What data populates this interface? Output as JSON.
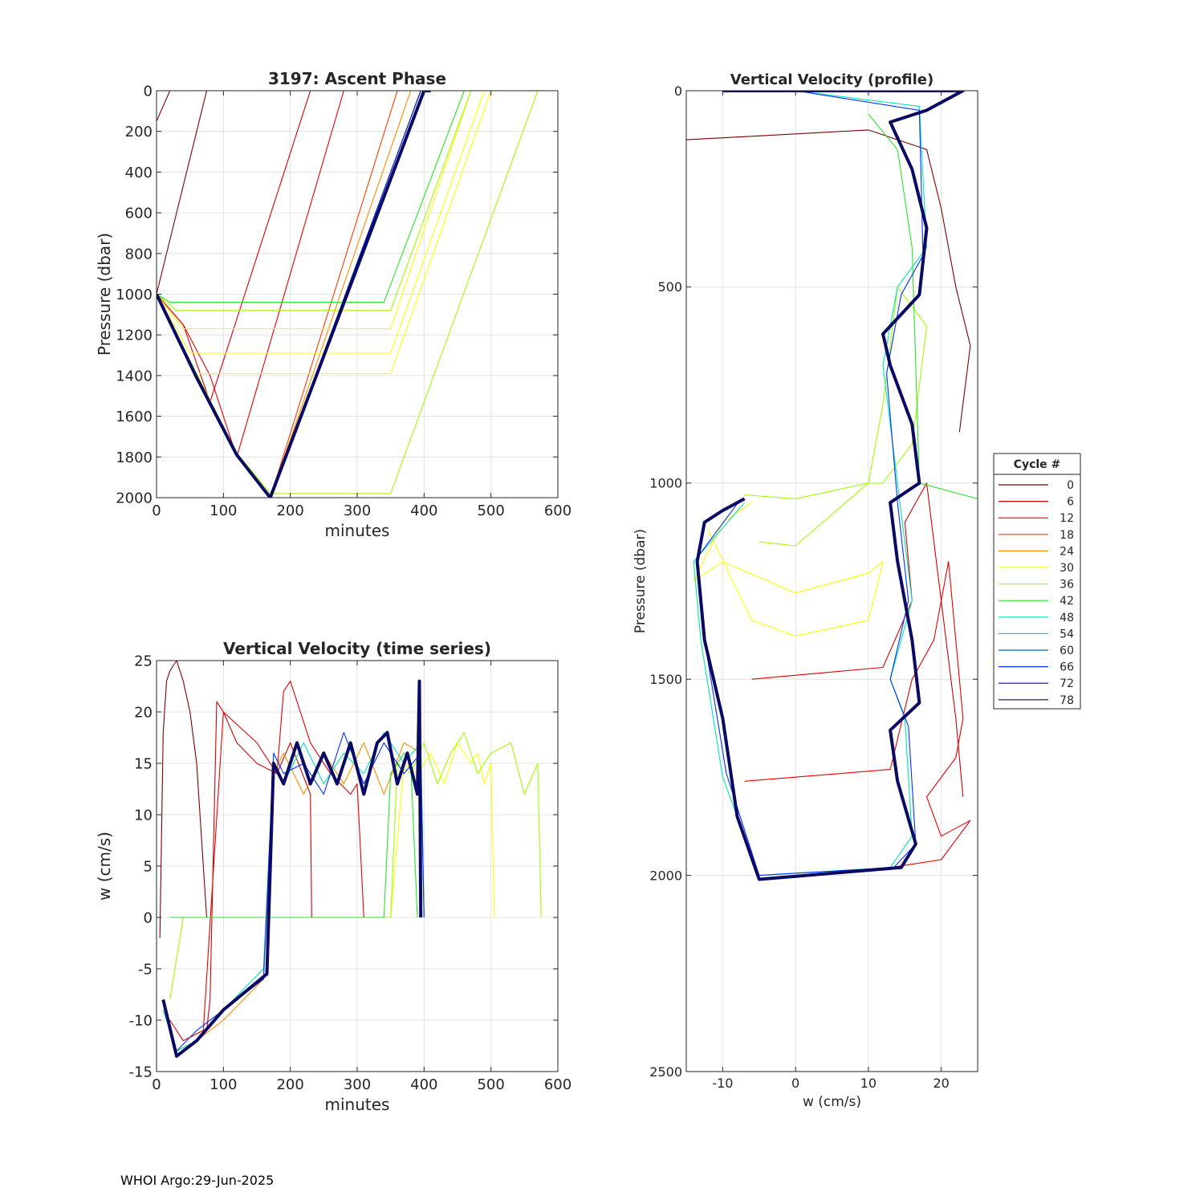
{
  "footer": "WHOI Argo:29-Jun-2025",
  "legend": {
    "title": "Cycle #",
    "cycles": [
      0,
      6,
      12,
      18,
      24,
      30,
      36,
      42,
      48,
      54,
      60,
      66,
      72,
      78
    ],
    "colors": [
      "#800000",
      "#d40000",
      "#e80000",
      "#ff3c00",
      "#ff8c00",
      "#ffff00",
      "#a0ff00",
      "#28e628",
      "#00e6b4",
      "#00c8ff",
      "#0064c8",
      "#0032ff",
      "#0000d2",
      "#0a0a64"
    ]
  },
  "chart_data": [
    {
      "id": "ascent",
      "type": "line",
      "title": "3197: Ascent Phase",
      "xlabel": "minutes",
      "ylabel": "Pressure (dbar)",
      "xlim": [
        0,
        600
      ],
      "ylim": [
        0,
        2000
      ],
      "y_reversed": true,
      "grid": true,
      "xticks": [
        0,
        100,
        200,
        300,
        400,
        500,
        600
      ],
      "yticks": [
        0,
        200,
        400,
        600,
        800,
        1000,
        1200,
        1400,
        1600,
        1800,
        2000
      ],
      "series": [
        {
          "cycle": 0,
          "x": [
            0,
            20,
            75
          ],
          "y": [
            150,
            0,
            0
          ]
        },
        {
          "cycle": 0,
          "x": [
            0,
            75
          ],
          "y": [
            1000,
            0
          ]
        },
        {
          "cycle": 6,
          "x": [
            0,
            40,
            80,
            230,
            235
          ],
          "y": [
            1000,
            1150,
            1530,
            0,
            0
          ]
        },
        {
          "cycle": 12,
          "x": [
            0,
            40,
            80,
            120,
            280,
            290
          ],
          "y": [
            1000,
            1150,
            1400,
            1800,
            0,
            0
          ]
        },
        {
          "cycle": 18,
          "x": [
            0,
            60,
            120,
            170,
            360,
            370
          ],
          "y": [
            1000,
            1400,
            1780,
            2000,
            0,
            0
          ]
        },
        {
          "cycle": 24,
          "x": [
            0,
            60,
            120,
            170,
            380,
            390
          ],
          "y": [
            1000,
            1420,
            1790,
            2000,
            0,
            0
          ]
        },
        {
          "cycle": 30,
          "x": [
            0,
            40,
            350,
            470,
            480
          ],
          "y": [
            1000,
            1170,
            1170,
            0,
            0
          ]
        },
        {
          "cycle": 30,
          "x": [
            0,
            50,
            350,
            490,
            500
          ],
          "y": [
            1000,
            1290,
            1290,
            0,
            0
          ]
        },
        {
          "cycle": 30,
          "x": [
            0,
            60,
            350,
            500,
            510
          ],
          "y": [
            1000,
            1390,
            1390,
            0,
            0
          ]
        },
        {
          "cycle": 36,
          "x": [
            0,
            120,
            170,
            350,
            570,
            575
          ],
          "y": [
            1000,
            1780,
            1980,
            1980,
            0,
            0
          ]
        },
        {
          "cycle": 36,
          "x": [
            0,
            30,
            350,
            470
          ],
          "y": [
            1000,
            1080,
            1080,
            0
          ]
        },
        {
          "cycle": 42,
          "x": [
            0,
            20,
            340,
            460
          ],
          "y": [
            1000,
            1040,
            1040,
            0
          ]
        },
        {
          "cycle": 48,
          "x": [
            0,
            60,
            120,
            170,
            395,
            405
          ],
          "y": [
            1000,
            1410,
            1790,
            2000,
            0,
            0
          ]
        },
        {
          "cycle": 60,
          "x": [
            0,
            60,
            120,
            170,
            400,
            410
          ],
          "y": [
            1000,
            1415,
            1790,
            2000,
            0,
            0
          ]
        },
        {
          "cycle": 72,
          "x": [
            0,
            60,
            120,
            170,
            395,
            405
          ],
          "y": [
            1000,
            1405,
            1785,
            2000,
            0,
            0
          ]
        },
        {
          "cycle": 78,
          "x": [
            0,
            60,
            120,
            170,
            400,
            410
          ],
          "y": [
            1000,
            1410,
            1790,
            2000,
            0,
            0
          ],
          "bold": true
        }
      ]
    },
    {
      "id": "timeseries",
      "type": "line",
      "title": "Vertical Velocity (time series)",
      "xlabel": "minutes",
      "ylabel": "w (cm/s)",
      "xlim": [
        0,
        600
      ],
      "ylim": [
        -15,
        25
      ],
      "grid": true,
      "xticks": [
        0,
        100,
        200,
        300,
        400,
        500,
        600
      ],
      "yticks": [
        -15,
        -10,
        -5,
        0,
        5,
        10,
        15,
        20,
        25
      ],
      "series": [
        {
          "cycle": 0,
          "x": [
            5,
            10,
            15,
            20,
            30,
            40,
            50,
            60,
            70,
            75,
            80
          ],
          "y": [
            -2,
            18,
            23,
            24,
            25,
            23,
            20,
            15,
            5,
            0,
            0
          ]
        },
        {
          "cycle": 6,
          "x": [
            75,
            80,
            90,
            100,
            120,
            150,
            180,
            200,
            230,
            232,
            240
          ],
          "y": [
            -11,
            -8,
            21,
            20,
            17,
            15,
            14,
            17,
            12,
            0,
            0
          ]
        },
        {
          "cycle": 12,
          "x": [
            20,
            40,
            70,
            100,
            150,
            180,
            190,
            200,
            230,
            260,
            290,
            300,
            310
          ],
          "y": [
            -10,
            -12,
            -11,
            20,
            17,
            14,
            22,
            23,
            17,
            14,
            12,
            13,
            0
          ]
        },
        {
          "cycle": 24,
          "x": [
            10,
            30,
            60,
            100,
            160,
            175,
            190,
            220,
            250,
            280,
            310,
            340,
            370,
            395,
            400
          ],
          "y": [
            -8,
            -13,
            -12,
            -10,
            -6,
            14,
            16,
            12,
            16,
            13,
            17,
            12,
            17,
            16,
            0
          ]
        },
        {
          "cycle": 30,
          "x": [
            350,
            370,
            390,
            410,
            430,
            450,
            470,
            480,
            490,
            500,
            505
          ],
          "y": [
            0,
            15,
            14,
            16,
            13,
            17,
            15,
            16,
            13,
            15,
            0
          ]
        },
        {
          "cycle": 36,
          "x": [
            20,
            40,
            350,
            360,
            380,
            400,
            420,
            440,
            460,
            480,
            500,
            530,
            550,
            570,
            575
          ],
          "y": [
            -8,
            0,
            0,
            15,
            14,
            17,
            13,
            16,
            18,
            14,
            16,
            17,
            12,
            15,
            0
          ]
        },
        {
          "cycle": 42,
          "x": [
            20,
            60,
            340,
            350,
            370,
            380,
            390
          ],
          "y": [
            0,
            0,
            0,
            14,
            16,
            15,
            0
          ]
        },
        {
          "cycle": 48,
          "x": [
            10,
            30,
            60,
            100,
            160,
            175,
            190,
            220,
            250,
            280,
            310,
            340,
            370,
            395,
            400
          ],
          "y": [
            -9,
            -13,
            -12,
            -9,
            -5,
            15,
            13,
            17,
            13,
            16,
            14,
            18,
            15,
            17,
            0
          ]
        },
        {
          "cycle": 66,
          "x": [
            10,
            30,
            60,
            100,
            160,
            175,
            190,
            220,
            250,
            280,
            310,
            340,
            370,
            395,
            400
          ],
          "y": [
            -8,
            -13,
            -11,
            -9,
            -6,
            16,
            14,
            15,
            12,
            18,
            13,
            17,
            14,
            16,
            0
          ]
        },
        {
          "cycle": 78,
          "x": [
            10,
            30,
            60,
            100,
            165,
            175,
            190,
            210,
            230,
            250,
            270,
            290,
            310,
            330,
            345,
            360,
            375,
            390,
            393,
            395
          ],
          "y": [
            -8,
            -13.5,
            -12,
            -9,
            -5.5,
            15,
            13,
            17,
            13,
            16,
            13,
            17,
            12,
            17,
            18,
            13,
            16,
            12,
            23,
            0
          ],
          "bold": true
        }
      ]
    },
    {
      "id": "profile",
      "type": "line",
      "title": "Vertical Velocity (profile)",
      "xlabel": "w (cm/s)",
      "ylabel": "Pressure (dbar)",
      "xlim": [
        -15,
        25
      ],
      "ylim": [
        0,
        2500
      ],
      "y_reversed": true,
      "grid": true,
      "xticks": [
        -10,
        0,
        10,
        20
      ],
      "yticks": [
        0,
        500,
        1000,
        1500,
        2000,
        2500
      ],
      "series": [
        {
          "cycle": 0,
          "x": [
            -15,
            10,
            18,
            20,
            22,
            24,
            22.5
          ],
          "y": [
            125,
            100,
            150,
            300,
            500,
            650,
            870
          ]
        },
        {
          "cycle": 6,
          "x": [
            -6,
            12,
            16,
            15,
            18,
            20,
            22,
            23
          ],
          "y": [
            1500,
            1470,
            1300,
            1100,
            1000,
            1300,
            1600,
            1800
          ]
        },
        {
          "cycle": 12,
          "x": [
            -7,
            13,
            16,
            19,
            21,
            23,
            22,
            18,
            20,
            24,
            20,
            13
          ],
          "y": [
            1760,
            1730,
            1500,
            1400,
            1200,
            1600,
            1700,
            1800,
            1900,
            1860,
            1960,
            1980
          ]
        },
        {
          "cycle": 30,
          "x": [
            -12,
            -6,
            0,
            10,
            12,
            10,
            0,
            -10,
            -14,
            -10,
            -6
          ],
          "y": [
            1120,
            1350,
            1390,
            1350,
            1200,
            1230,
            1280,
            1200,
            1250,
            1100,
            1050
          ]
        },
        {
          "cycle": 36,
          "x": [
            -7,
            0,
            10,
            12,
            14,
            18,
            16,
            12,
            10,
            0,
            -5
          ],
          "y": [
            1030,
            1040,
            1000,
            800,
            500,
            600,
            900,
            1000,
            1000,
            1160,
            1150
          ]
        },
        {
          "cycle": 42,
          "x": [
            10,
            14,
            16,
            17,
            25
          ],
          "y": [
            60,
            150,
            400,
            1000,
            1040
          ]
        },
        {
          "cycle": 48,
          "x": [
            -7,
            -14,
            -13,
            -10,
            -5,
            13,
            16,
            15,
            13,
            16,
            14,
            12,
            14,
            18,
            17,
            0
          ],
          "y": [
            1050,
            1200,
            1400,
            1750,
            2000,
            1980,
            1900,
            1600,
            1500,
            1300,
            1000,
            700,
            500,
            400,
            40,
            0
          ]
        },
        {
          "cycle": 66,
          "x": [
            -7.5,
            -13.5,
            -12.5,
            -9.5,
            -5,
            13.5,
            16.5,
            15.5,
            13,
            15.5,
            14,
            12.5,
            14.5,
            17.5,
            17,
            0
          ],
          "y": [
            1040,
            1190,
            1400,
            1740,
            2000,
            1980,
            1920,
            1620,
            1500,
            1300,
            1050,
            720,
            520,
            420,
            50,
            0
          ]
        },
        {
          "cycle": 78,
          "x": [
            -10,
            23,
            18,
            13,
            16,
            18,
            17,
            12,
            13,
            16,
            17,
            13,
            14,
            16,
            17,
            13,
            14,
            16.5,
            14.5,
            -5,
            -8,
            -10,
            -12.5,
            -13.5,
            -12.5,
            -10,
            -7
          ],
          "y": [
            0,
            0,
            50,
            80,
            200,
            350,
            520,
            620,
            700,
            850,
            1000,
            1050,
            1200,
            1400,
            1560,
            1630,
            1760,
            1920,
            1980,
            2010,
            1850,
            1600,
            1400,
            1200,
            1100,
            1070,
            1040
          ],
          "bold": true
        }
      ]
    }
  ]
}
